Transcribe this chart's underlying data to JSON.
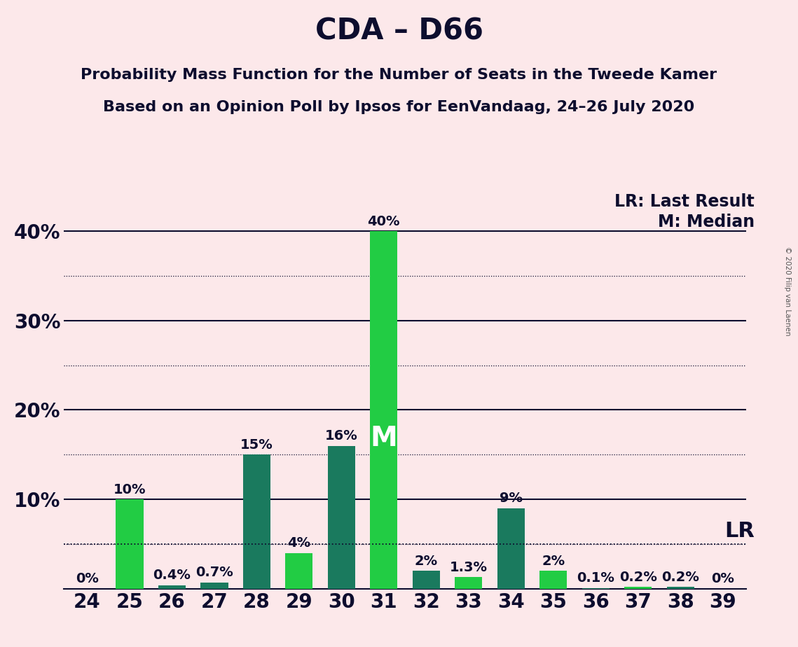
{
  "title": "CDA – D66",
  "subtitle1": "Probability Mass Function for the Number of Seats in the Tweede Kamer",
  "subtitle2": "Based on an Opinion Poll by Ipsos for EenVandaag, 24–26 July 2020",
  "copyright": "© 2020 Filip van Laenen",
  "seats": [
    24,
    25,
    26,
    27,
    28,
    29,
    30,
    31,
    32,
    33,
    34,
    35,
    36,
    37,
    38,
    39
  ],
  "values": [
    0.0,
    10.0,
    0.4,
    0.7,
    15.0,
    4.0,
    16.0,
    40.0,
    2.0,
    1.3,
    9.0,
    2.0,
    0.1,
    0.2,
    0.2,
    0.0
  ],
  "bar_colors": [
    "#22cc44",
    "#22cc44",
    "#1a7a5e",
    "#1a7a5e",
    "#1a7a5e",
    "#22cc44",
    "#1a7a5e",
    "#22cc44",
    "#1a7a5e",
    "#22cc44",
    "#1a7a5e",
    "#22cc44",
    "#1a7a5e",
    "#22cc44",
    "#1a7a5e",
    "#22cc44"
  ],
  "labels": [
    "0%",
    "10%",
    "0.4%",
    "0.7%",
    "15%",
    "4%",
    "16%",
    "40%",
    "2%",
    "1.3%",
    "9%",
    "2%",
    "0.1%",
    "0.2%",
    "0.2%",
    "0%"
  ],
  "median_seat": 31,
  "lr_value": 5.0,
  "lr_label": "LR",
  "lr_legend": "LR: Last Result",
  "median_legend": "M: Median",
  "background_color": "#fce8ea",
  "ylim_max": 44.5,
  "solid_lines": [
    10,
    20,
    30,
    40
  ],
  "dotted_lines": [
    5,
    15,
    25,
    35
  ],
  "title_fontsize": 30,
  "subtitle_fontsize": 16,
  "tick_fontsize": 20,
  "bar_label_fontsize": 14,
  "legend_fontsize": 17,
  "lr_inline_fontsize": 22,
  "median_m_fontsize": 28
}
